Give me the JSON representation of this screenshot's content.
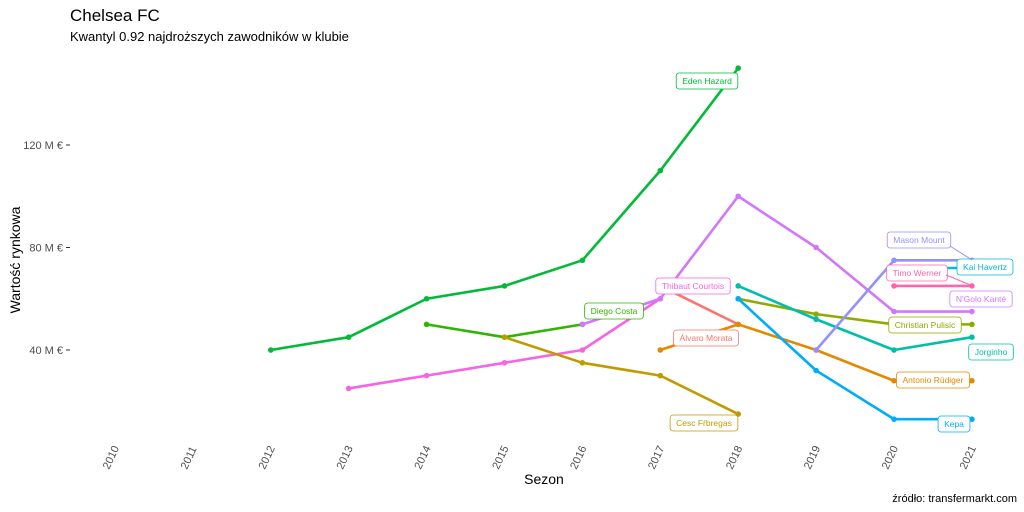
{
  "chart_data": {
    "type": "line",
    "title": "Chelsea FC",
    "subtitle": "Kwantyl 0.92 najdroższych zawodników w klubie",
    "xlabel": "Sezon",
    "ylabel": "Wartość rynkowa",
    "caption": "źródło: transfermarkt.com",
    "x_ticks": [
      "2010",
      "2011",
      "2012",
      "2013",
      "2014",
      "2015",
      "2016",
      "2017",
      "2018",
      "2019",
      "2020",
      "2021"
    ],
    "y_ticks": [
      {
        "value": 40,
        "label": "40 M €"
      },
      {
        "value": 80,
        "label": "80 M €"
      },
      {
        "value": 120,
        "label": "120 M €"
      }
    ],
    "xlim": [
      2010,
      2021
    ],
    "grid": false,
    "legend": "none (direct labels)",
    "series": [
      {
        "name": "Eden Hazard",
        "color": "#00BA38",
        "x": [
          2012,
          2013,
          2014,
          2015,
          2016,
          2017,
          2018
        ],
        "y": [
          40,
          45,
          60,
          65,
          75,
          110,
          150
        ]
      },
      {
        "name": "Diego Costa",
        "color": "#2FB600",
        "x": [
          2014,
          2015,
          2016
        ],
        "y": [
          50,
          45,
          50
        ]
      },
      {
        "name": "Thibaut Courtois",
        "color": "#F564E3",
        "x": [
          2013,
          2014,
          2015,
          2016,
          2017
        ],
        "y": [
          25,
          30,
          35,
          40,
          60
        ]
      },
      {
        "name": "N'Golo Kanté",
        "color": "#D277FB",
        "x": [
          2016,
          2017,
          2018,
          2019,
          2020,
          2021
        ],
        "y": [
          50,
          60,
          100,
          80,
          55,
          55
        ]
      },
      {
        "name": "Álvaro Morata",
        "color": "#F8766D",
        "x": [
          2017,
          2018
        ],
        "y": [
          65,
          50
        ]
      },
      {
        "name": "Cesc Fŕbregas",
        "color": "#C09B00",
        "x": [
          2015,
          2016,
          2017,
          2018
        ],
        "y": [
          45,
          35,
          30,
          15
        ]
      },
      {
        "name": "Antonio Rüdiger",
        "color": "#E18A00",
        "x": [
          2017,
          2018,
          2019,
          2020,
          2021
        ],
        "y": [
          40,
          50,
          40,
          28,
          28
        ]
      },
      {
        "name": "Christian Pulisic",
        "color": "#8FAA00",
        "x": [
          2018,
          2019,
          2020,
          2021
        ],
        "y": [
          60,
          54,
          50,
          50
        ]
      },
      {
        "name": "Jorginho",
        "color": "#00BFAA",
        "x": [
          2018,
          2019,
          2020,
          2021
        ],
        "y": [
          65,
          52,
          40,
          45
        ]
      },
      {
        "name": "Kepa",
        "color": "#00ADFA",
        "x": [
          2018,
          2019,
          2020,
          2021
        ],
        "y": [
          60,
          32,
          13,
          13
        ]
      },
      {
        "name": "Mason Mount",
        "color": "#9590FF",
        "x": [
          2019,
          2020,
          2021
        ],
        "y": [
          40,
          75,
          75
        ]
      },
      {
        "name": "Kai Havertz",
        "color": "#00BBDA",
        "x": [
          2020,
          2021
        ],
        "y": [
          72,
          72
        ]
      },
      {
        "name": "Timo Werner",
        "color": "#FF65AC",
        "x": [
          2020,
          2021
        ],
        "y": [
          65,
          65
        ]
      }
    ]
  }
}
